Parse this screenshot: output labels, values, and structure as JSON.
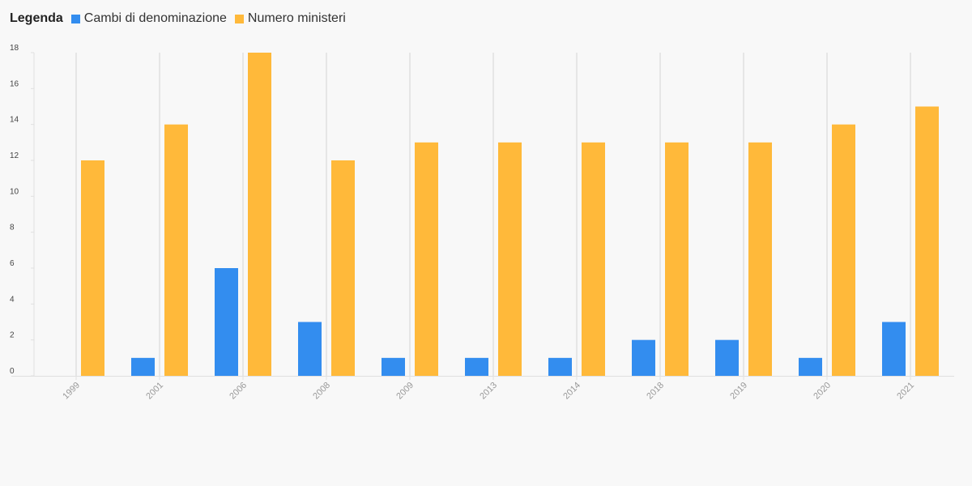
{
  "legend": {
    "title": "Legenda"
  },
  "colors": {
    "series_0": "#338def",
    "series_1": "#ffb93a",
    "grid": "#e6e6e6",
    "axis": "#e0e0e0"
  },
  "chart_data": {
    "type": "bar",
    "categories": [
      "1999",
      "2001",
      "2006",
      "2008",
      "2009",
      "2013",
      "2014",
      "2018",
      "2019",
      "2020",
      "2021"
    ],
    "series": [
      {
        "name": "Cambi di denominazione",
        "values": [
          0,
          1,
          6,
          3,
          1,
          1,
          1,
          2,
          2,
          1,
          3
        ]
      },
      {
        "name": "Numero ministeri",
        "values": [
          12,
          14,
          18,
          12,
          13,
          13,
          13,
          13,
          13,
          14,
          15
        ]
      }
    ],
    "ylim": [
      0,
      18
    ],
    "yticks": [
      0,
      2,
      4,
      6,
      8,
      10,
      12,
      14,
      16,
      18
    ],
    "grid": "vertical",
    "legend_position": "top-left",
    "title": "",
    "xlabel": "",
    "ylabel": ""
  }
}
